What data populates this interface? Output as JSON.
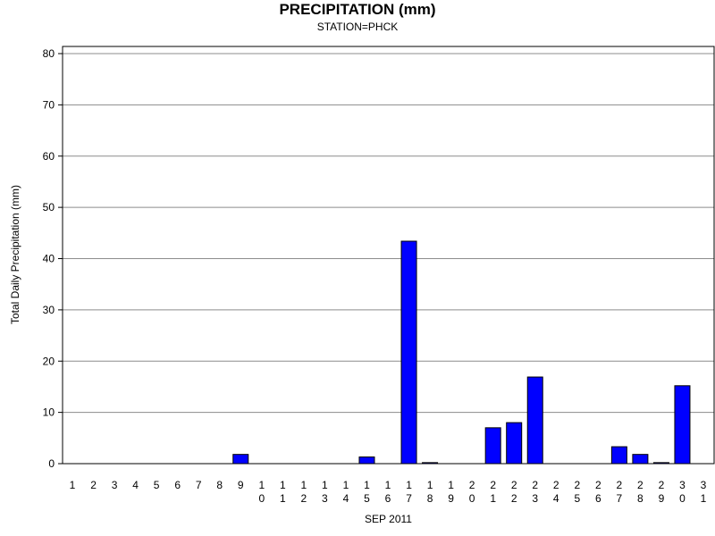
{
  "chart_data": {
    "type": "bar",
    "title": "PRECIPITATION (mm)",
    "subtitle": "STATION=PHCK",
    "xlabel": "SEP 2011",
    "ylabel": "Total Daily Precipitation (mm)",
    "categories": [
      "1",
      "2",
      "3",
      "4",
      "5",
      "6",
      "7",
      "8",
      "9",
      "10",
      "11",
      "12",
      "13",
      "14",
      "15",
      "16",
      "17",
      "18",
      "19",
      "20",
      "21",
      "22",
      "23",
      "24",
      "25",
      "26",
      "27",
      "28",
      "29",
      "30",
      "31"
    ],
    "values": [
      0,
      0,
      0,
      0,
      0,
      0,
      0,
      0,
      1.8,
      0,
      0,
      0,
      0,
      0,
      1.3,
      0,
      43.4,
      0.2,
      0,
      0,
      7.0,
      8.0,
      16.9,
      0,
      0,
      0,
      3.3,
      1.8,
      0.2,
      15.2,
      0
    ],
    "ylim": [
      0,
      80
    ],
    "yticks": [
      0,
      10,
      20,
      30,
      40,
      50,
      60,
      70,
      80
    ],
    "grid": true,
    "bar_color": "#0000ff"
  }
}
